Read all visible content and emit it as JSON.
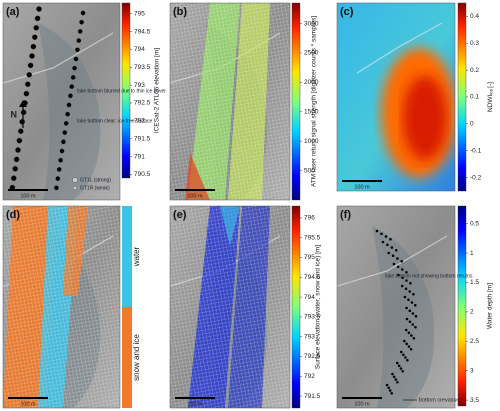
{
  "panels": [
    {
      "label": "(a)",
      "colorbar": {
        "label": "ICESat-2 ATL06 elevation [m]",
        "lim": [
          790.4,
          795.3
        ],
        "ticks": [
          795,
          794.5,
          794,
          793.5,
          793,
          792.5,
          792,
          791.5,
          791,
          790.5
        ]
      },
      "annotations": [
        "lake bottom blurred due to thin ice cover",
        "lake bottom clear: ice-free surface"
      ],
      "north": "N",
      "legend": [
        "GT1L (strong)",
        "GT1R (weak)"
      ],
      "scalebar": "100 m"
    },
    {
      "label": "(b)",
      "colorbar": {
        "label": "ATM laser return signal strength [digitizer counts * samples]",
        "lim": [
          0,
          3350
        ],
        "ticks": [
          500,
          1000,
          1500,
          2000,
          2500,
          3000
        ]
      },
      "scalebar": "100 m"
    },
    {
      "label": "(c)",
      "colorbar": {
        "label": "NDWI",
        "label_sub": "ice",
        "label_unit": "[-]",
        "lim": [
          -0.25,
          0.45
        ],
        "ticks": [
          0.4,
          0.3,
          0.2,
          0.1,
          0,
          -0.1,
          -0.2
        ]
      },
      "scalebar": "100 m"
    },
    {
      "label": "(d)",
      "classes": {
        "categories": [
          "water",
          "snow and ice"
        ],
        "colors": [
          "#3ec3e8",
          "#f07a2a"
        ]
      },
      "scalebar": "100 m"
    },
    {
      "label": "(e)",
      "colorbar": {
        "label": "Surface elevation (water, snow and ice) [m]",
        "lim": [
          791.2,
          796.3
        ],
        "ticks": [
          796,
          795.5,
          795,
          794.5,
          794,
          793.5,
          793,
          792.5,
          792,
          791.5
        ]
      },
      "scalebar": "100 m"
    },
    {
      "label": "(f)",
      "colorbar": {
        "label": "Water depth [m]",
        "lim": [
          3.6,
          0.2
        ],
        "ticks": [
          0.5,
          1,
          1.5,
          2,
          2.5,
          3,
          3.5
        ]
      },
      "annotations": [
        "lake bottom not showing bottom returns",
        "bottom crevasse"
      ],
      "scalebar": "100 m"
    }
  ]
}
